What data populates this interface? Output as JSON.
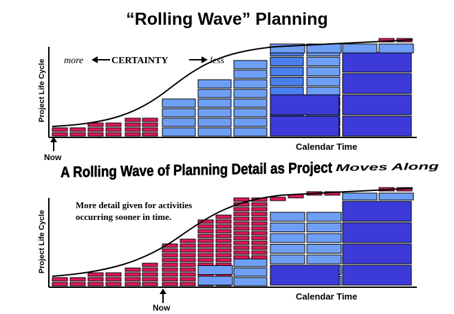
{
  "title": "“Rolling Wave” Planning",
  "banner": {
    "main": "A Rolling Wave of Planning Detail as Project",
    "tail": "Moves Along"
  },
  "top_chart": {
    "ylabel": "Project Life Cycle",
    "xlabel": "Calendar Time",
    "now_label": "Now",
    "certainty": {
      "more": "more",
      "word": "CERTAINTY",
      "less": "less"
    }
  },
  "bottom_chart": {
    "ylabel": "Project Life Cycle",
    "xlabel": "Calendar Time",
    "now_label": "Now",
    "note_line1": "More detail given for activities",
    "note_line2": "occurring sooner in time."
  },
  "colors": {
    "pink": "#e0185a",
    "light_blue": "#6f9ff5",
    "mid_blue": "#4a7fee",
    "dark_blue": "#3c3bd8",
    "outline": "#000000"
  }
}
